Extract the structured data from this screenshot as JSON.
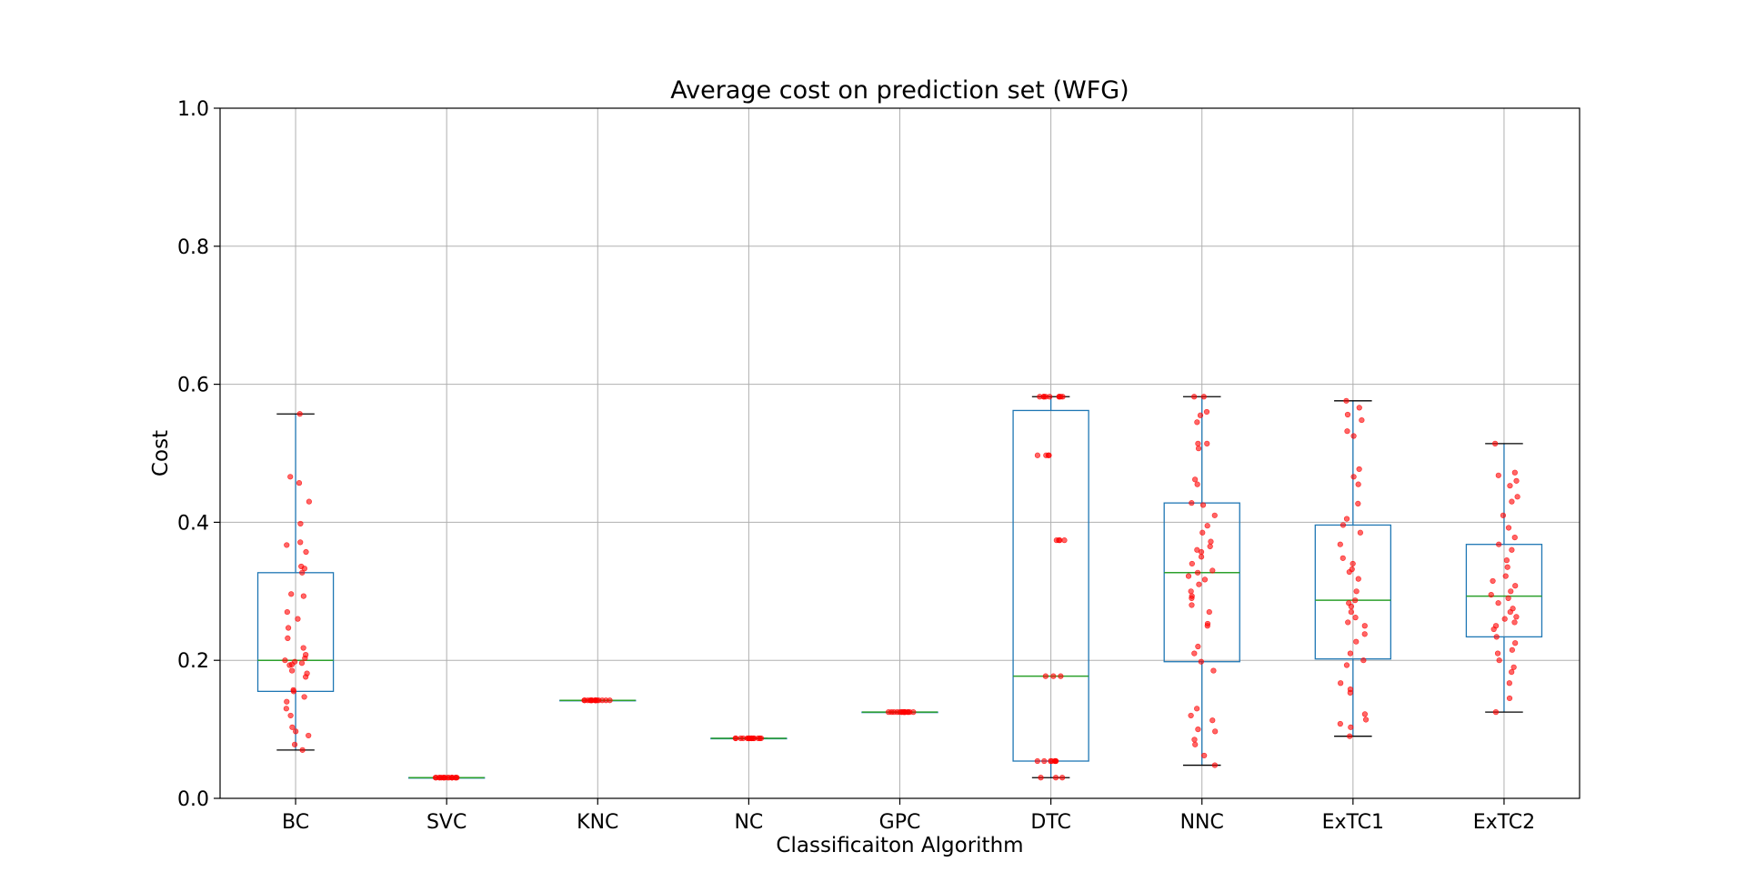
{
  "chart_data": {
    "type": "box",
    "title": "Average cost on prediction set (WFG)",
    "xlabel": "Classificaiton Algorithm",
    "ylabel": "Cost",
    "ylim": [
      0.0,
      1.0
    ],
    "yticks": [
      "0.0",
      "0.2",
      "0.4",
      "0.6",
      "0.8",
      "1.0"
    ],
    "grid": true,
    "colors": {
      "box": "#1f77b4",
      "median": "#2ca02c",
      "whisker": "#1f77b4",
      "cap": "#000000",
      "points": "#ff0000"
    },
    "categories": [
      "BC",
      "SVC",
      "KNC",
      "NC",
      "GPC",
      "DTC",
      "NNC",
      "ExTC1",
      "ExTC2"
    ],
    "boxes": [
      {
        "name": "BC",
        "whislo": 0.07,
        "q1": 0.155,
        "med": 0.2,
        "q3": 0.327,
        "whishi": 0.557,
        "points": [
          0.557,
          0.466,
          0.457,
          0.43,
          0.398,
          0.371,
          0.367,
          0.357,
          0.336,
          0.333,
          0.327,
          0.296,
          0.293,
          0.27,
          0.26,
          0.247,
          0.232,
          0.218,
          0.208,
          0.203,
          0.2,
          0.198,
          0.196,
          0.194,
          0.193,
          0.185,
          0.181,
          0.176,
          0.157,
          0.155,
          0.147,
          0.14,
          0.13,
          0.12,
          0.103,
          0.097,
          0.091,
          0.078,
          0.07
        ]
      },
      {
        "name": "SVC",
        "whislo": 0.03,
        "q1": 0.03,
        "med": 0.03,
        "q3": 0.03,
        "whishi": 0.03,
        "points": [
          0.03,
          0.03,
          0.03,
          0.03,
          0.03,
          0.03,
          0.03,
          0.03,
          0.03,
          0.03,
          0.03,
          0.03,
          0.03,
          0.03,
          0.03,
          0.03
        ]
      },
      {
        "name": "KNC",
        "whislo": 0.142,
        "q1": 0.142,
        "med": 0.142,
        "q3": 0.142,
        "whishi": 0.142,
        "points": [
          0.142,
          0.142,
          0.142,
          0.142,
          0.142,
          0.142,
          0.142,
          0.142,
          0.142,
          0.142,
          0.142,
          0.142,
          0.142,
          0.142,
          0.142,
          0.142
        ]
      },
      {
        "name": "NC",
        "whislo": 0.087,
        "q1": 0.087,
        "med": 0.087,
        "q3": 0.087,
        "whishi": 0.087,
        "points": [
          0.087,
          0.087,
          0.087,
          0.087,
          0.087,
          0.087,
          0.087,
          0.087,
          0.087,
          0.087,
          0.087,
          0.087,
          0.087,
          0.087,
          0.087,
          0.087
        ]
      },
      {
        "name": "GPC",
        "whislo": 0.125,
        "q1": 0.125,
        "med": 0.125,
        "q3": 0.125,
        "whishi": 0.125,
        "points": [
          0.125,
          0.125,
          0.125,
          0.125,
          0.125,
          0.125,
          0.125,
          0.125,
          0.125,
          0.125,
          0.125,
          0.125,
          0.125,
          0.125,
          0.125,
          0.125
        ]
      },
      {
        "name": "DTC",
        "whislo": 0.03,
        "q1": 0.054,
        "med": 0.177,
        "q3": 0.562,
        "whishi": 0.582,
        "points": [
          0.582,
          0.582,
          0.582,
          0.582,
          0.582,
          0.582,
          0.582,
          0.582,
          0.582,
          0.497,
          0.497,
          0.497,
          0.497,
          0.374,
          0.374,
          0.374,
          0.374,
          0.177,
          0.177,
          0.177,
          0.054,
          0.054,
          0.054,
          0.054,
          0.054,
          0.054,
          0.054,
          0.054,
          0.03,
          0.03,
          0.03
        ]
      },
      {
        "name": "NNC",
        "whislo": 0.048,
        "q1": 0.198,
        "med": 0.327,
        "q3": 0.428,
        "whishi": 0.582,
        "points": [
          0.582,
          0.582,
          0.56,
          0.555,
          0.545,
          0.514,
          0.514,
          0.507,
          0.462,
          0.455,
          0.428,
          0.425,
          0.41,
          0.395,
          0.385,
          0.372,
          0.365,
          0.36,
          0.357,
          0.35,
          0.34,
          0.33,
          0.327,
          0.322,
          0.317,
          0.31,
          0.3,
          0.293,
          0.29,
          0.28,
          0.27,
          0.253,
          0.25,
          0.22,
          0.21,
          0.198,
          0.185,
          0.13,
          0.12,
          0.113,
          0.1,
          0.097,
          0.085,
          0.078,
          0.062,
          0.048
        ]
      },
      {
        "name": "ExTC1",
        "whislo": 0.09,
        "q1": 0.202,
        "med": 0.287,
        "q3": 0.396,
        "whishi": 0.576,
        "points": [
          0.576,
          0.566,
          0.556,
          0.548,
          0.532,
          0.525,
          0.477,
          0.466,
          0.455,
          0.427,
          0.405,
          0.396,
          0.385,
          0.368,
          0.348,
          0.34,
          0.332,
          0.328,
          0.318,
          0.3,
          0.287,
          0.283,
          0.278,
          0.27,
          0.262,
          0.255,
          0.25,
          0.238,
          0.227,
          0.21,
          0.2,
          0.193,
          0.167,
          0.158,
          0.153,
          0.122,
          0.114,
          0.108,
          0.103,
          0.09
        ]
      },
      {
        "name": "ExTC2",
        "whislo": 0.125,
        "q1": 0.234,
        "med": 0.293,
        "q3": 0.368,
        "whishi": 0.514,
        "points": [
          0.514,
          0.472,
          0.468,
          0.46,
          0.453,
          0.437,
          0.43,
          0.41,
          0.392,
          0.378,
          0.368,
          0.36,
          0.345,
          0.335,
          0.322,
          0.315,
          0.308,
          0.3,
          0.295,
          0.29,
          0.283,
          0.275,
          0.27,
          0.263,
          0.26,
          0.255,
          0.25,
          0.245,
          0.234,
          0.225,
          0.215,
          0.21,
          0.2,
          0.19,
          0.183,
          0.167,
          0.145,
          0.125
        ]
      }
    ]
  }
}
